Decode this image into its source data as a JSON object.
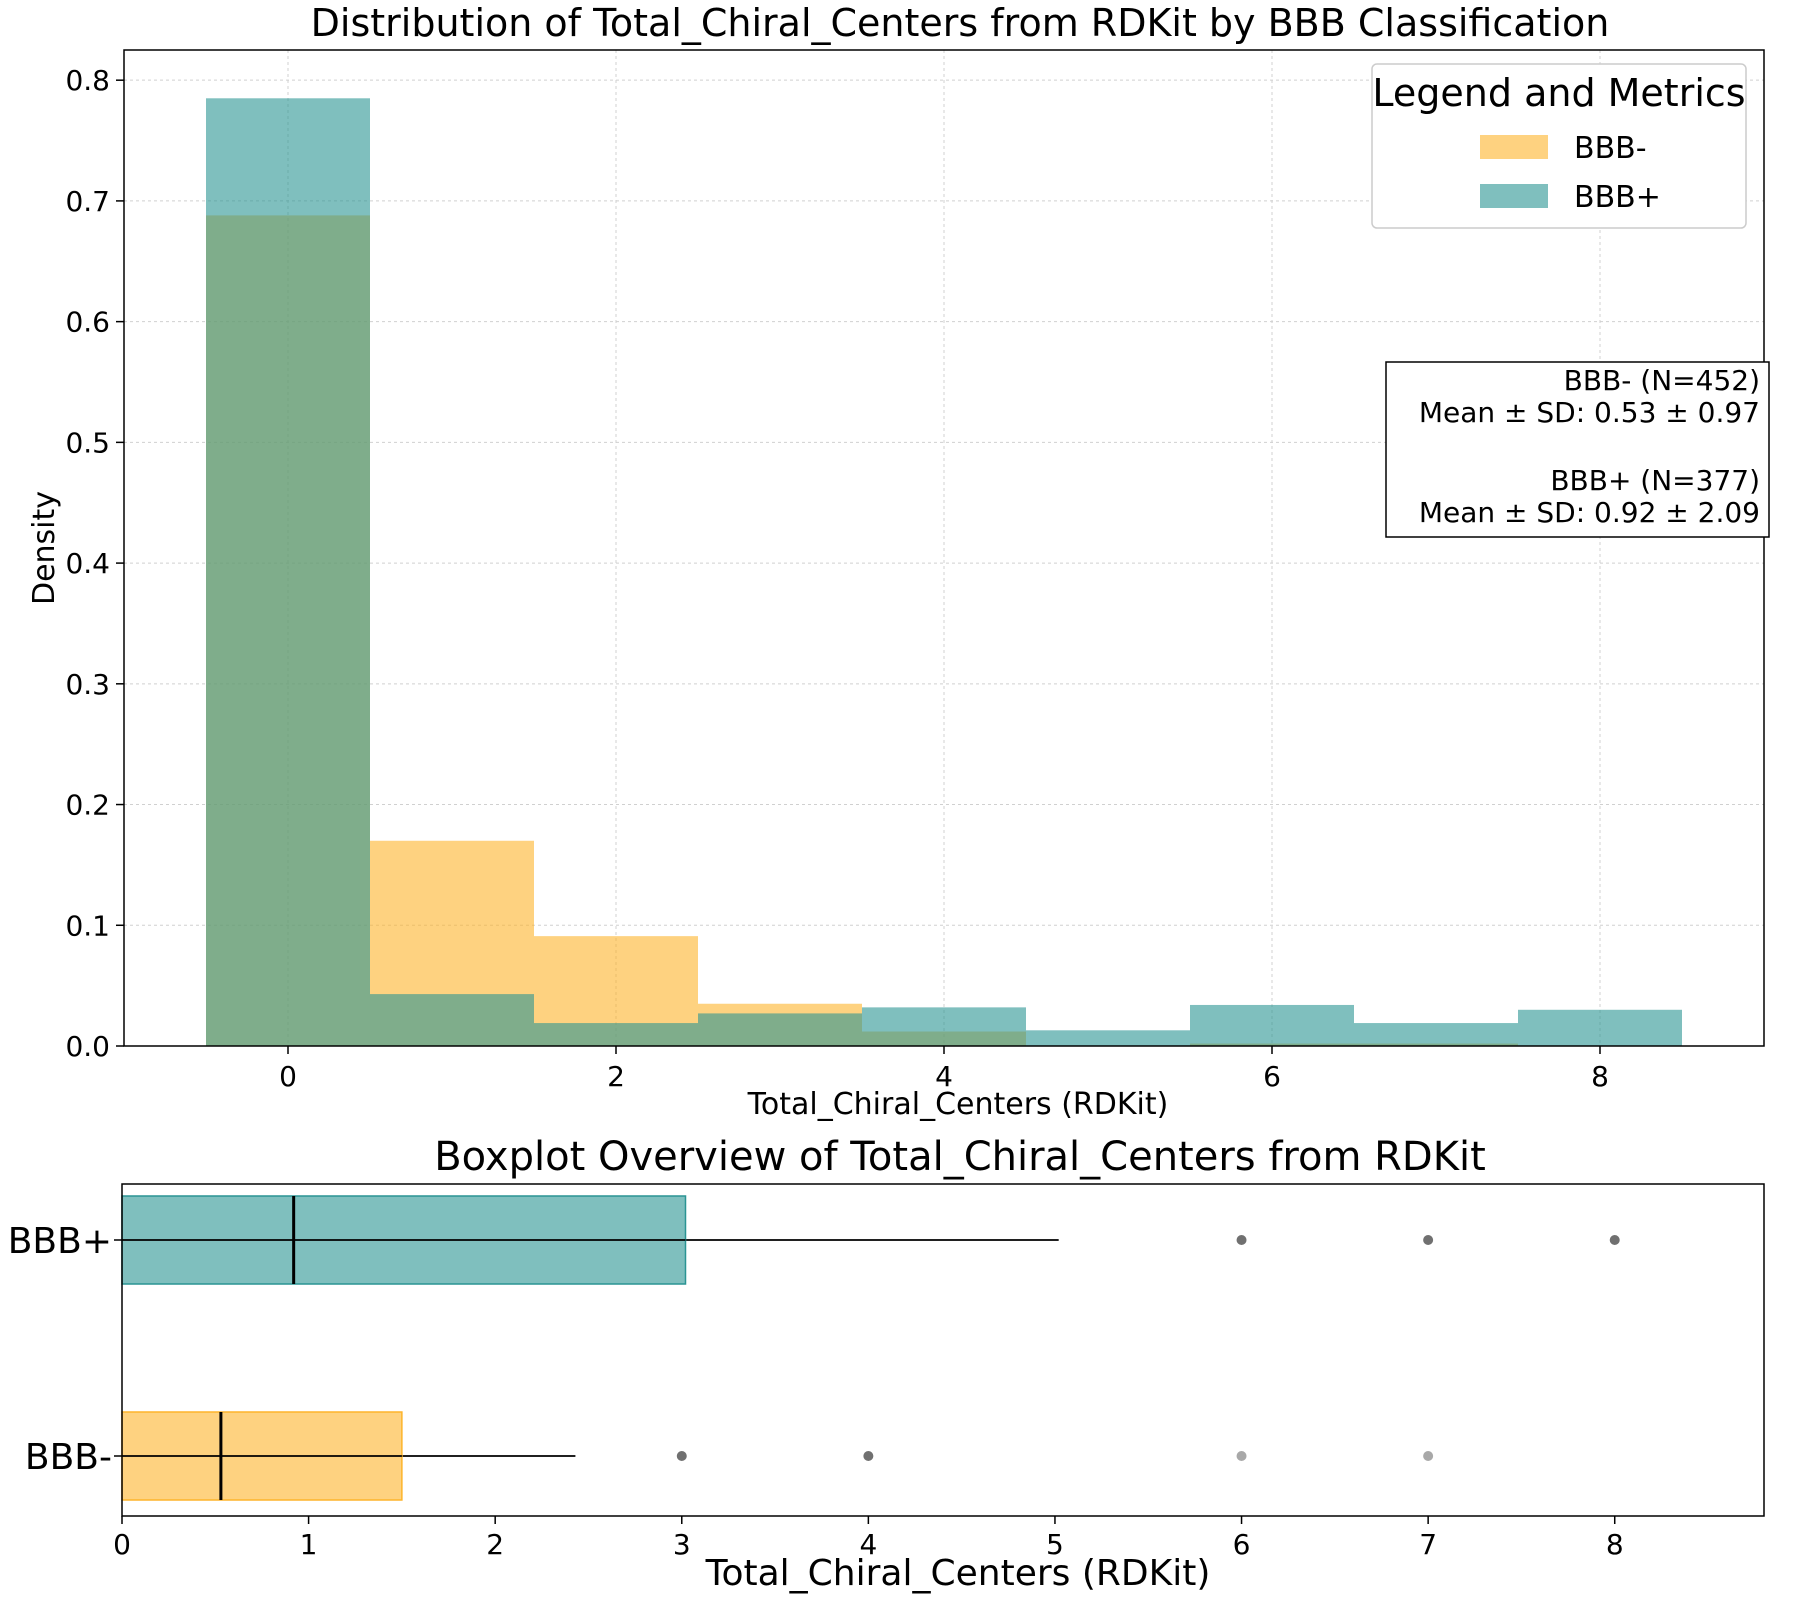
{
  "chart_data": [
    {
      "type": "bar",
      "title": "Distribution of Total_Chiral_Centers from RDKit by BBB Classification",
      "xlabel": "Total_Chiral_Centers (RDKit)",
      "ylabel": "Density",
      "xlim": [
        -1.0,
        9.0
      ],
      "ylim": [
        0,
        0.825
      ],
      "xticks": [
        0,
        2,
        4,
        6,
        8
      ],
      "yticks": [
        0.0,
        0.1,
        0.2,
        0.3,
        0.4,
        0.5,
        0.6,
        0.7,
        0.8
      ],
      "grid": true,
      "bin_edges": [
        -0.5,
        0.5,
        1.5,
        2.5,
        3.5,
        4.5,
        5.5,
        6.5,
        7.5,
        8.5
      ],
      "series": [
        {
          "name": "BBB-",
          "color": "#FDB42B",
          "opacity": 0.6,
          "values": [
            0.688,
            0.17,
            0.091,
            0.035,
            0.012,
            0.0,
            0.002,
            0.002,
            0.0
          ]
        },
        {
          "name": "BBB+",
          "color": "#2A9493",
          "opacity": 0.6,
          "values": [
            0.785,
            0.043,
            0.019,
            0.027,
            0.032,
            0.013,
            0.034,
            0.019,
            0.03
          ]
        }
      ],
      "legend": {
        "title": "Legend and Metrics",
        "placement": "top-right",
        "entries": [
          "BBB-",
          "BBB+"
        ]
      },
      "metrics_box": {
        "lines": [
          "BBB- (N=452)",
          "Mean ± SD: 0.53 ± 0.97",
          "",
          "BBB+ (N=377)",
          "Mean ± SD: 0.92 ± 2.09"
        ]
      }
    },
    {
      "type": "boxplot",
      "title": "Boxplot Overview of Total_Chiral_Centers from RDKit",
      "xlabel": "Total_Chiral_Centers (RDKit)",
      "xlim": [
        0,
        8.8
      ],
      "xticks": [
        0,
        1,
        2,
        3,
        4,
        5,
        6,
        7,
        8
      ],
      "categories": [
        "BBB+",
        "BBB-"
      ],
      "boxes": [
        {
          "name": "BBB+",
          "color": "#2A9493",
          "q1": 0,
          "median": 0.92,
          "q3": 3.02,
          "whisker_low": 0,
          "whisker_high": 5.02,
          "outliers": [
            6,
            7,
            8
          ],
          "outlier_strength": [
            1,
            1,
            1
          ]
        },
        {
          "name": "BBB-",
          "color": "#FDB42B",
          "q1": 0,
          "median": 0.53,
          "q3": 1.5,
          "whisker_low": 0,
          "whisker_high": 2.43,
          "outliers": [
            3,
            4,
            6,
            7
          ],
          "outlier_strength": [
            1,
            1,
            0.6,
            0.6
          ]
        }
      ]
    }
  ]
}
